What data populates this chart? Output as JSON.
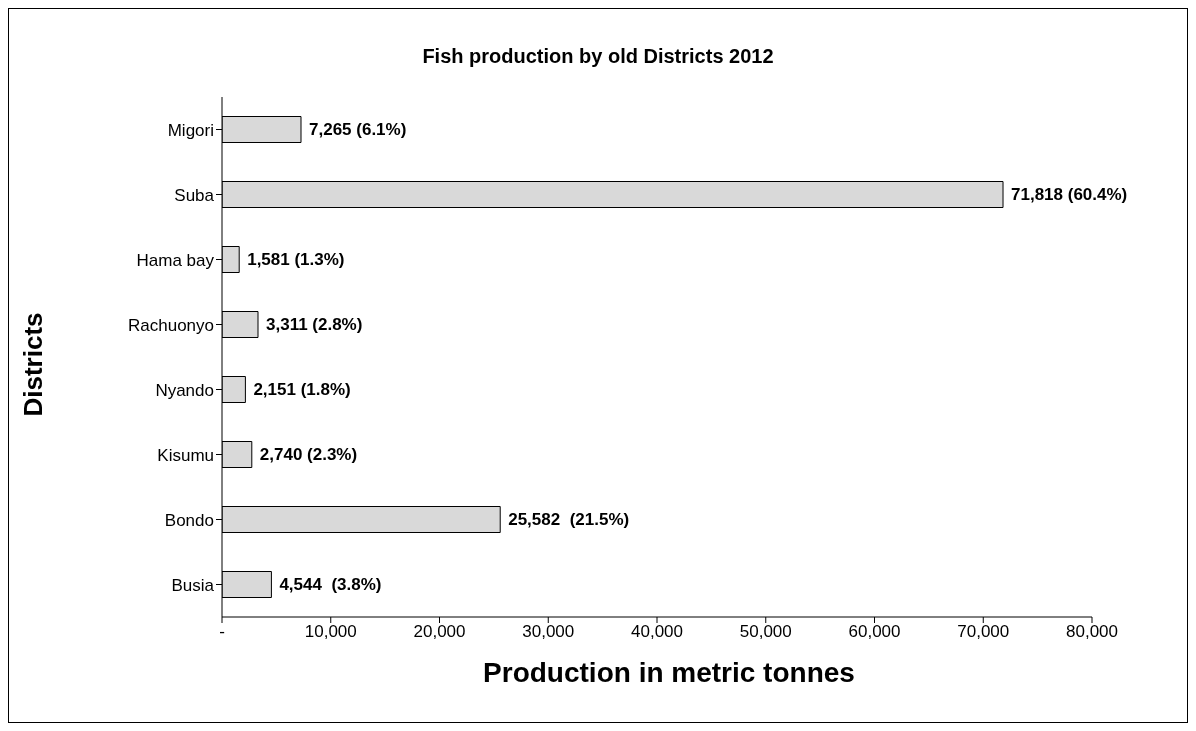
{
  "chart_data": {
    "type": "bar",
    "orientation": "horizontal",
    "title": "Fish production by old Districts 2012",
    "xlabel": "Production in metric tonnes",
    "ylabel": "Districts",
    "categories": [
      "Migori",
      "Suba",
      "Hama bay",
      "Rachuonyo",
      "Nyando",
      "Kisumu",
      "Bondo",
      "Busia"
    ],
    "values": [
      7265,
      71818,
      1581,
      3311,
      2151,
      2740,
      25582,
      4544
    ],
    "value_labels": [
      "7,265 (6.1%)",
      "71,818 (60.4%)",
      "1,581 (1.3%)",
      "3,311 (2.8%)",
      "2,151 (1.8%)",
      "2,740 (2.3%)",
      "25,582  (21.5%)",
      "4,544  (3.8%)"
    ],
    "color": "#d9d9d9",
    "xlim": [
      0,
      80000
    ],
    "xticks": [
      {
        "value": 0,
        "label": "-"
      },
      {
        "value": 10000,
        "label": "10,000"
      },
      {
        "value": 20000,
        "label": "20,000"
      },
      {
        "value": 30000,
        "label": "30,000"
      },
      {
        "value": 40000,
        "label": "40,000"
      },
      {
        "value": 50000,
        "label": "50,000"
      },
      {
        "value": 60000,
        "label": "60,000"
      },
      {
        "value": 70000,
        "label": "70,000"
      },
      {
        "value": 80000,
        "label": "80,000"
      }
    ],
    "grid": false,
    "legend": false
  }
}
